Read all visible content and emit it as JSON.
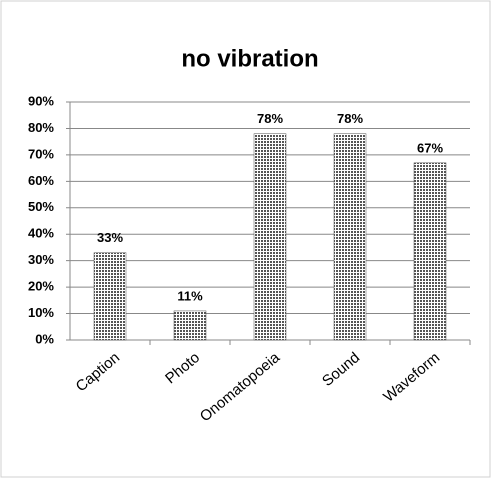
{
  "chart_data": {
    "type": "bar",
    "title": "no vibration",
    "categories": [
      "Caption",
      "Photo",
      "Onomatopoeia",
      "Sound",
      "Waveform"
    ],
    "values": [
      33,
      11,
      78,
      78,
      67
    ],
    "value_labels": [
      "33%",
      "11%",
      "78%",
      "78%",
      "67%"
    ],
    "color": "#555555",
    "ylim": [
      0,
      90
    ],
    "yticks": [
      {
        "value": 0,
        "label": "0%"
      },
      {
        "value": 10,
        "label": "10%"
      },
      {
        "value": 20,
        "label": "20%"
      },
      {
        "value": 30,
        "label": "30%"
      },
      {
        "value": 40,
        "label": "40%"
      },
      {
        "value": 50,
        "label": "50%"
      },
      {
        "value": 60,
        "label": "60%"
      },
      {
        "value": 70,
        "label": "70%"
      },
      {
        "value": 80,
        "label": "80%"
      },
      {
        "value": 90,
        "label": "90%"
      }
    ],
    "grid": true
  }
}
